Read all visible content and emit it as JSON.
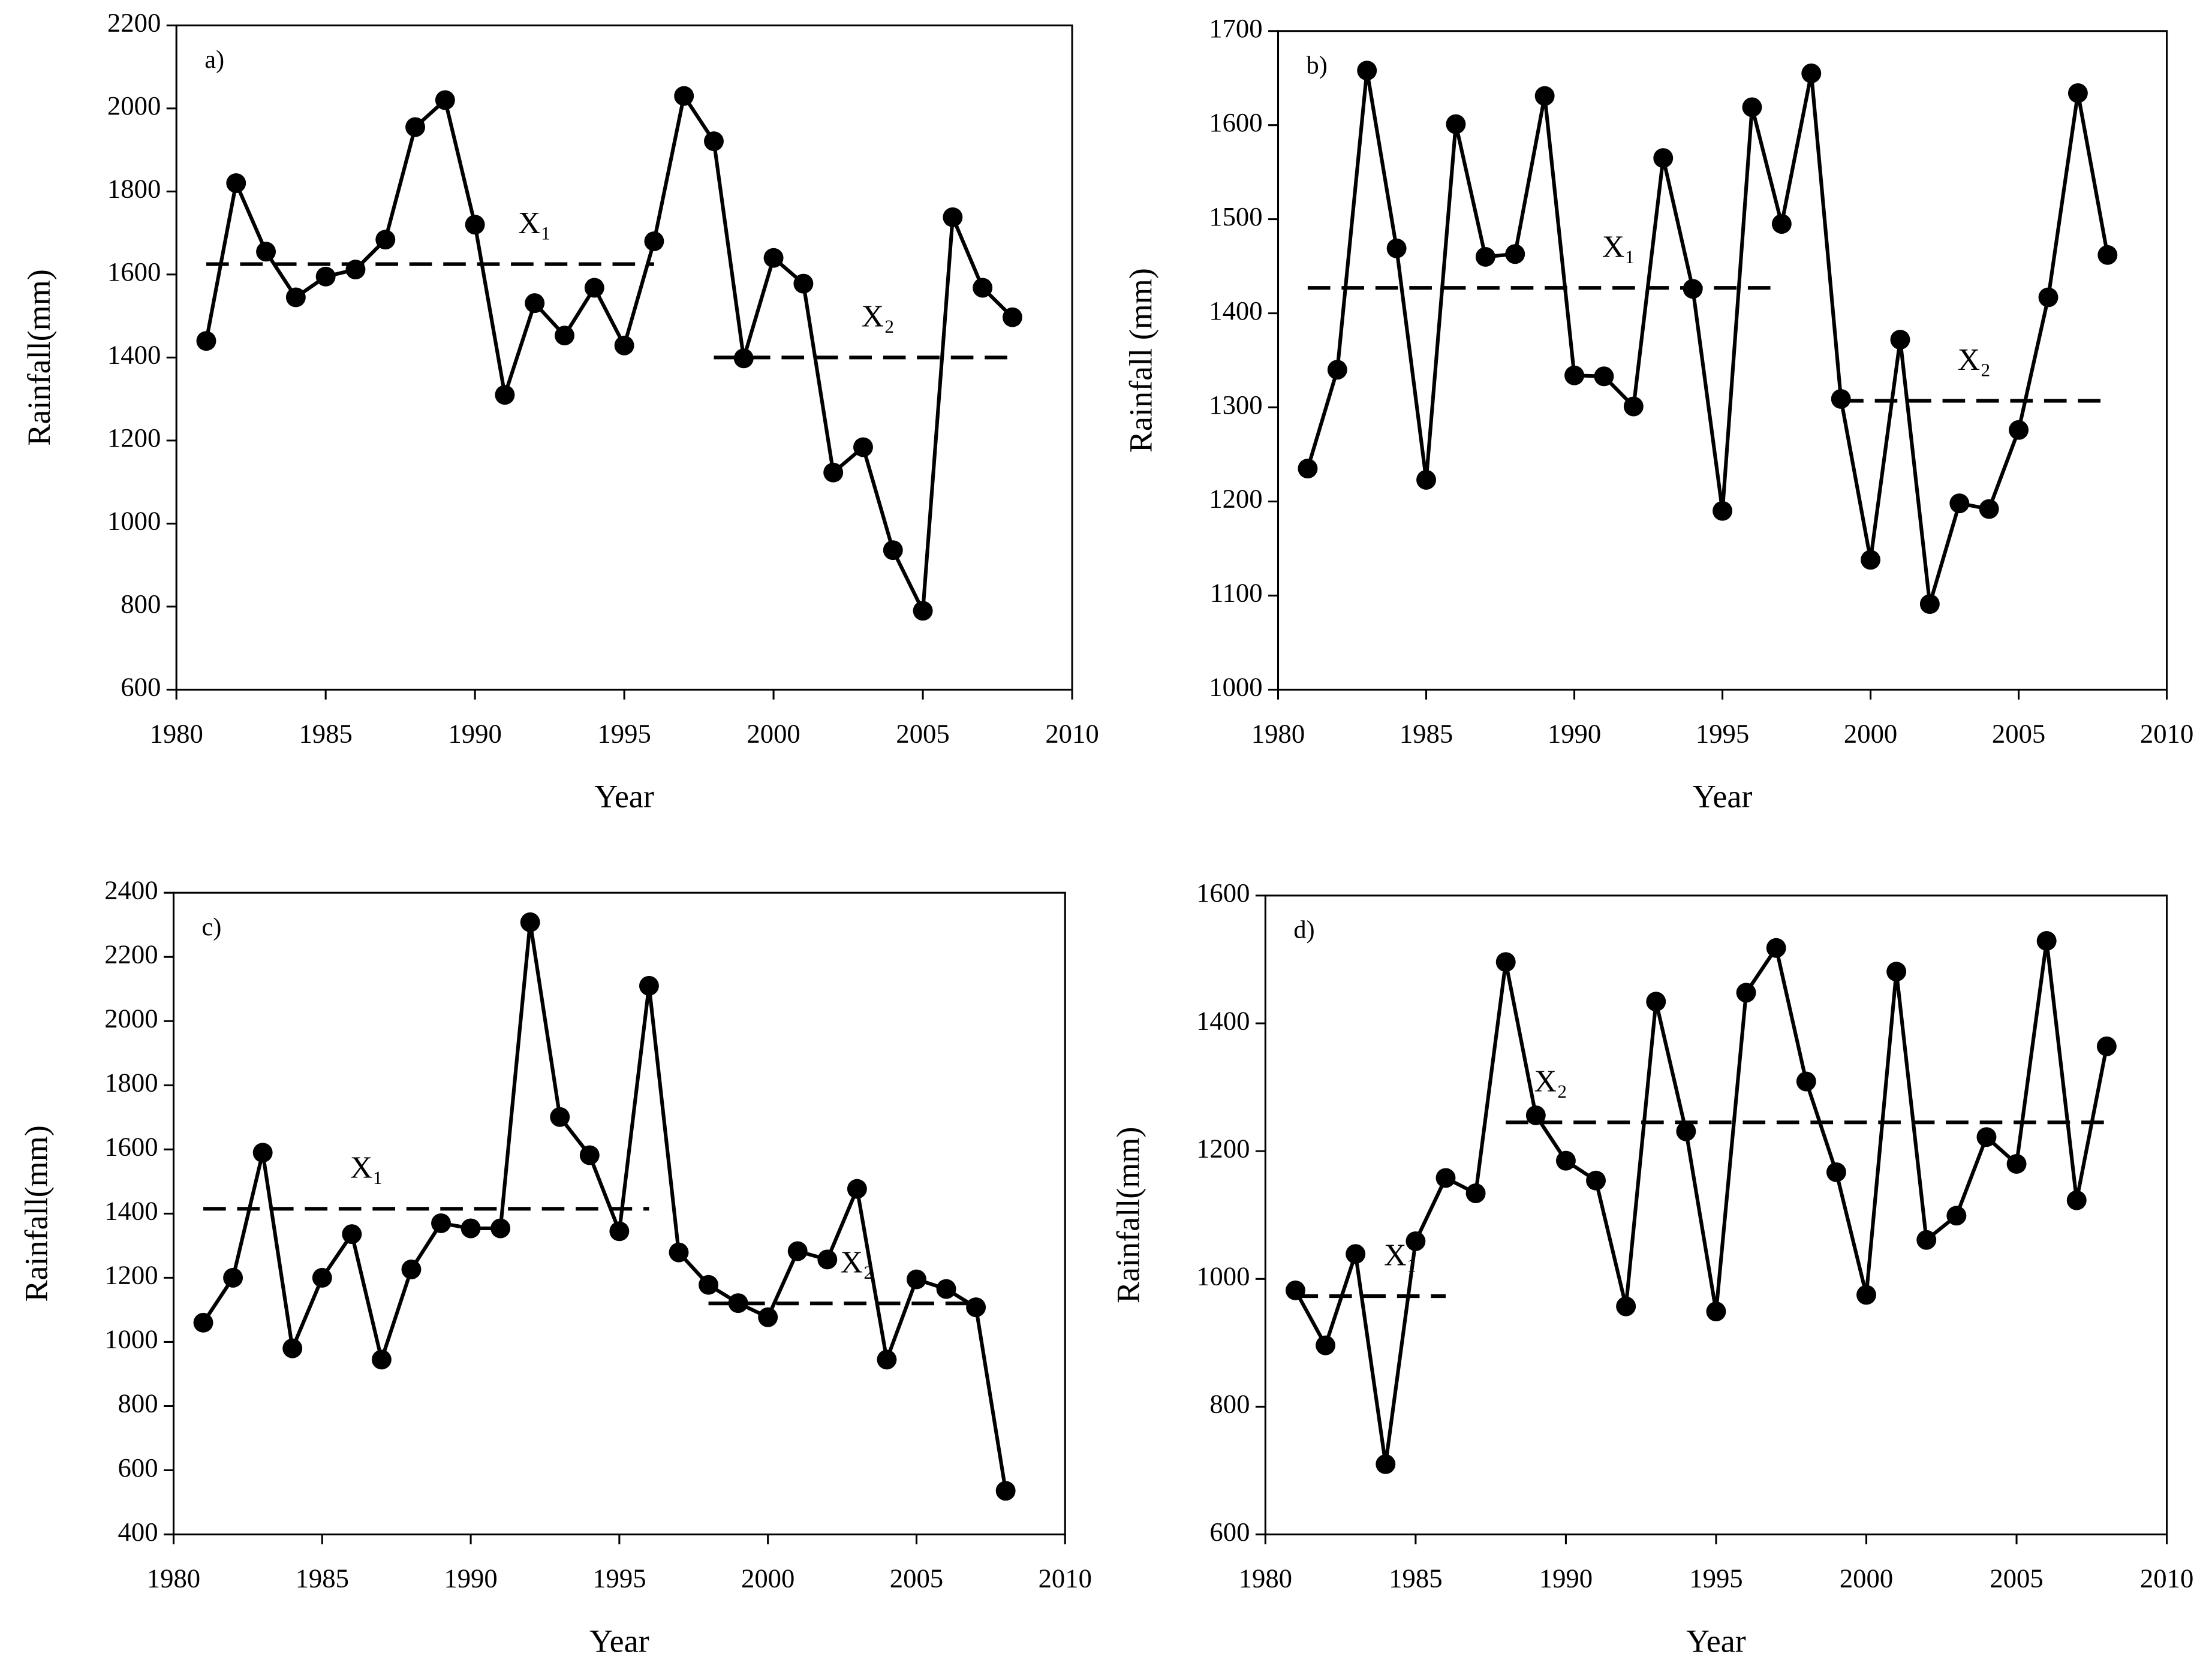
{
  "chart_data": [
    {
      "type": "line",
      "panel_label": "a)",
      "xlabel": "Year",
      "ylabel": "Rainfall(mm)",
      "x": [
        1981,
        1982,
        1983,
        1984,
        1985,
        1986,
        1987,
        1988,
        1989,
        1990,
        1991,
        1992,
        1993,
        1994,
        1995,
        1996,
        1997,
        1998,
        1999,
        2000,
        2001,
        2002,
        2003,
        2004,
        2005,
        2006,
        2007,
        2008
      ],
      "values": [
        1440,
        1820,
        1655,
        1545,
        1595,
        1612,
        1684,
        1955,
        2020,
        1720,
        1310,
        1531,
        1453,
        1568,
        1429,
        1680,
        2030,
        1921,
        1398,
        1640,
        1578,
        1123,
        1184,
        936,
        790,
        1738,
        1568,
        1497
      ],
      "color": "#000000",
      "xlim": [
        1980,
        2010
      ],
      "xticks": [
        1980,
        1985,
        1990,
        1995,
        2000,
        2005,
        2010
      ],
      "ylim": [
        600,
        2200
      ],
      "yticks": [
        600,
        800,
        1000,
        1200,
        1400,
        1600,
        1800,
        2000,
        2200
      ],
      "mean_lines": [
        {
          "label": "X₁",
          "value": 1625,
          "x": [
            1981,
            1996
          ]
        },
        {
          "label": "X₂",
          "value": 1400,
          "x": [
            1998,
            2008
          ]
        }
      ]
    },
    {
      "type": "line",
      "panel_label": "b)",
      "xlabel": "Year",
      "ylabel": "Rainfall (mm)",
      "x": [
        1981,
        1982,
        1983,
        1984,
        1985,
        1986,
        1987,
        1988,
        1989,
        1990,
        1991,
        1992,
        1993,
        1994,
        1995,
        1996,
        1997,
        1998,
        1999,
        2000,
        2001,
        2002,
        2003,
        2004,
        2005,
        2006,
        2007,
        2008
      ],
      "values": [
        1235,
        1340,
        1658,
        1469,
        1223,
        1601,
        1460,
        1463,
        1631,
        1334,
        1333,
        1301,
        1565,
        1426,
        1190,
        1619,
        1495,
        1655,
        1309,
        1138,
        1372,
        1091,
        1198,
        1192,
        1276,
        1417,
        1634,
        1462
      ],
      "color": "#000000",
      "xlim": [
        1980,
        2010
      ],
      "xticks": [
        1980,
        1985,
        1990,
        1995,
        2000,
        2005,
        2010
      ],
      "ylim": [
        1000,
        1700
      ],
      "yticks": [
        1000,
        1100,
        1200,
        1300,
        1400,
        1500,
        1600,
        1700
      ],
      "mean_lines": [
        {
          "label": "X₁",
          "value": 1427,
          "x": [
            1981,
            1997
          ]
        },
        {
          "label": "X₂",
          "value": 1307,
          "x": [
            1999,
            2008
          ]
        }
      ]
    },
    {
      "type": "line",
      "panel_label": "c)",
      "xlabel": "Year",
      "ylabel": "Rainfall(mm)",
      "x": [
        1981,
        1982,
        1983,
        1984,
        1985,
        1986,
        1987,
        1988,
        1989,
        1990,
        1991,
        1992,
        1993,
        1994,
        1995,
        1996,
        1997,
        1998,
        1999,
        2000,
        2001,
        2002,
        2003,
        2004,
        2005,
        2006,
        2007,
        2008
      ],
      "values": [
        1060,
        1200,
        1590,
        980,
        1200,
        1336,
        945,
        1226,
        1370,
        1354,
        1354,
        2308,
        1701,
        1582,
        1345,
        2110,
        1279,
        1178,
        1121,
        1077,
        1283,
        1257,
        1477,
        945,
        1195,
        1165,
        1108,
        536
      ],
      "color": "#000000",
      "xlim": [
        1980,
        2010
      ],
      "xticks": [
        1980,
        1985,
        1990,
        1995,
        2000,
        2005,
        2010
      ],
      "ylim": [
        400,
        2400
      ],
      "yticks": [
        400,
        600,
        800,
        1000,
        1200,
        1400,
        1600,
        1800,
        2000,
        2200,
        2400
      ],
      "mean_lines": [
        {
          "label": "X₁",
          "value": 1415,
          "x": [
            1981,
            1996
          ]
        },
        {
          "label": "X₂",
          "value": 1120,
          "x": [
            1998,
            2007
          ]
        }
      ]
    },
    {
      "type": "line",
      "panel_label": "d)",
      "xlabel": "Year",
      "ylabel": "Rainfall(mm)",
      "x": [
        1981,
        1982,
        1983,
        1984,
        1985,
        1986,
        1987,
        1988,
        1989,
        1990,
        1991,
        1992,
        1993,
        1994,
        1995,
        1996,
        1997,
        1998,
        1999,
        2000,
        2001,
        2002,
        2003,
        2004,
        2005,
        2006,
        2007,
        2008
      ],
      "values": [
        982,
        896,
        1039,
        710,
        1059,
        1158,
        1134,
        1496,
        1256,
        1185,
        1154,
        957,
        1434,
        1231,
        949,
        1448,
        1518,
        1309,
        1167,
        975,
        1481,
        1061,
        1099,
        1222,
        1180,
        1529,
        1123,
        1364
      ],
      "color": "#000000",
      "xlim": [
        1980,
        2010
      ],
      "xticks": [
        1980,
        1985,
        1990,
        1995,
        2000,
        2005,
        2010
      ],
      "ylim": [
        600,
        1600
      ],
      "yticks": [
        600,
        800,
        1000,
        1200,
        1400,
        1600
      ],
      "mean_lines": [
        {
          "label": "X₁",
          "value": 973,
          "x": [
            1981,
            1986
          ]
        },
        {
          "label": "X₂",
          "value": 1245,
          "x": [
            1988,
            2008
          ]
        }
      ]
    }
  ]
}
